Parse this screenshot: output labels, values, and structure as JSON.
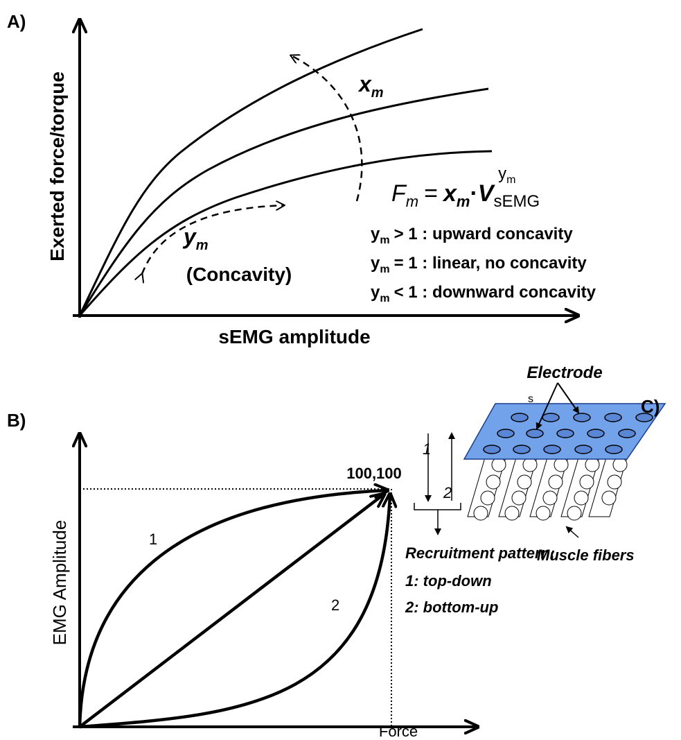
{
  "panel_a": {
    "label": "A)",
    "y_axis_label": "Exerted force/torque",
    "x_axis_label": "sEMG amplitude",
    "x_param": {
      "main": "x",
      "sub": "m"
    },
    "y_param": {
      "main": "y",
      "sub": "m"
    },
    "concavity": "(Concavity)",
    "formula": {
      "lhs": "F",
      "lhs_sub": "m",
      "equals": "=",
      "x": "x",
      "x_sub": "m",
      "dot": "·",
      "v": "V",
      "v_sub": "sEMG",
      "exp": "y",
      "exp_sub": "m"
    },
    "conditions": [
      {
        "y": "y",
        "sub": "m",
        "text": "> 1 : upward concavity"
      },
      {
        "y": "y",
        "sub": "m",
        "text": "= 1 : linear, no concavity"
      },
      {
        "y": "y",
        "sub": "m",
        "text": "< 1 : downward concavity"
      }
    ]
  },
  "panel_b": {
    "label": "B)",
    "y_axis_label": "EMG Amplitude",
    "x_axis_label": "Force",
    "endpoint": "100,100",
    "curve_1": "1",
    "curve_2": "2"
  },
  "panel_c": {
    "label": "C)",
    "electrode": "Electrode",
    "electrode_suffix": "s",
    "arrow_1": "1",
    "arrow_2": "2",
    "fibers": "Muscle fibers",
    "recruitment_title": "Recruitment pattern:",
    "recruitment": [
      "1: top-down",
      "2: bottom-up"
    ]
  }
}
